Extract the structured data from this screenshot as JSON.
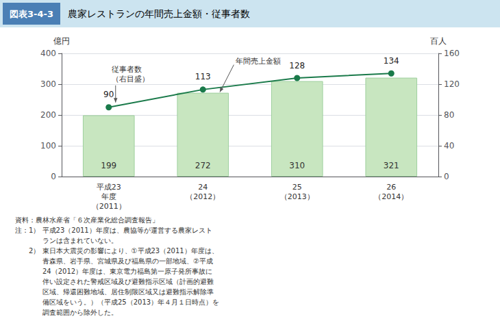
{
  "chart_data": {
    "type": "bar",
    "title": "農家レストランの年間売上金額・従事者数",
    "title_prefix": "図表3-4-3",
    "categories": [
      "平成23\n年度\n（2011）",
      "24\n（2012）",
      "25\n（2013）",
      "26\n（2014）"
    ],
    "series": [
      {
        "type": "bar",
        "color": "#c8e6c0",
        "values": [
          199,
          272,
          310,
          321
        ]
      },
      {
        "type": "line",
        "axis": "y2",
        "color": "#1a7a4a",
        "marker": "circle",
        "values": [
          90,
          113,
          128,
          134
        ]
      }
    ],
    "ylabel": "億円",
    "y2label": "百人",
    "ylim": [
      0,
      400
    ],
    "yticks": [
      0,
      100,
      200,
      300,
      400
    ],
    "y2lim": [
      0,
      160
    ],
    "y2ticks": [
      0,
      40,
      80,
      120,
      160
    ],
    "grid": true,
    "data_labels": true,
    "annotations": [
      "年間売上金額",
      "従事者数\n（右目盛）"
    ],
    "notes": [
      "資料：農林水産省「６次産業化総合調査報告」",
      "注：1） 平成23（2011）年度は、農協等が運営する農家レスト",
      "　　　　ランは含まれていない。",
      "　　2） 東日本大震災の影響により、①平成23（2011）年度は、",
      "　　　　青森県、岩手県、宮城県及び福島県の一部地域、②平成",
      "　　　　24（2012）年度は、東京電力福島第一原子発所事故に",
      "　　　　伴い設定された警戒区域及び避難指示区域（計画的避難",
      "　　　　区域、帰還困難地域、居住制限区域又は避難指示解除準",
      "　　　　備区域をいう。）（平成25（2013）年４月１日時点）を",
      "　　　　調査範囲から除外した。"
    ]
  }
}
